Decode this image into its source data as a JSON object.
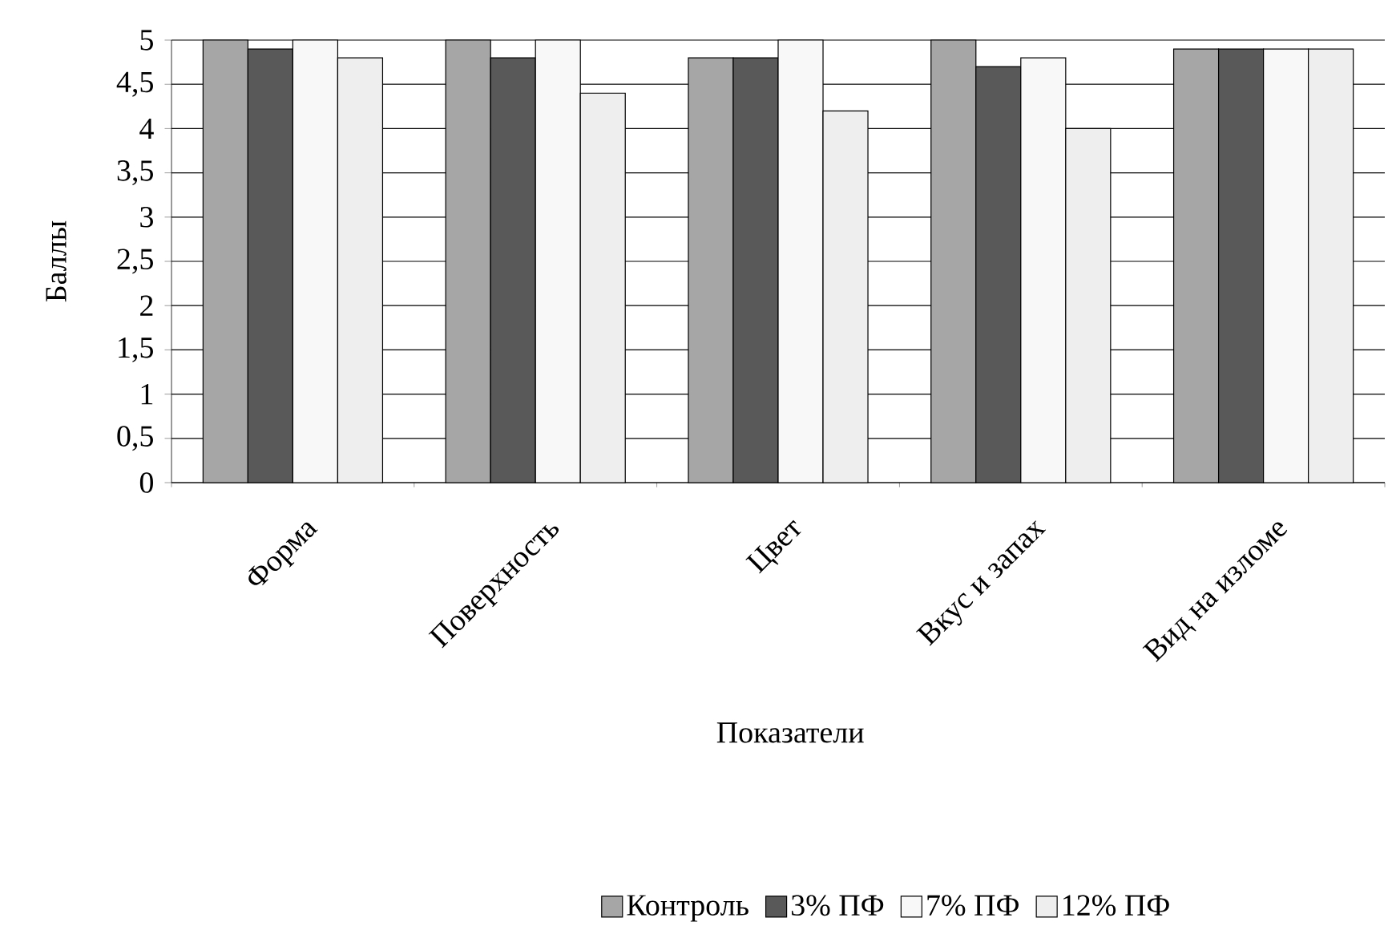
{
  "chart_data": {
    "type": "bar",
    "xlabel": "Показатели",
    "ylabel": "Баллы",
    "categories": [
      "Форма",
      "Поверхность",
      "Цвет",
      "Вкус и запах",
      "Вид на изломе"
    ],
    "series": [
      {
        "name": "Контроль",
        "color": "#a6a6a6",
        "values": [
          5,
          5,
          4.8,
          5,
          4.9
        ]
      },
      {
        "name": "3% ПФ",
        "color": "#595959",
        "values": [
          4.9,
          4.8,
          4.8,
          4.7,
          4.9
        ]
      },
      {
        "name": "7% ПФ",
        "color": "#f8f8f8",
        "values": [
          5,
          5,
          5,
          4.8,
          4.9
        ]
      },
      {
        "name": "12% ПФ",
        "color": "#eeeeee",
        "values": [
          4.8,
          4.4,
          4.2,
          4.0,
          4.9
        ]
      }
    ],
    "ylim": [
      0,
      5
    ],
    "yticks": [
      0,
      {
        "value": 0.5,
        "label": "0,5"
      },
      1,
      {
        "value": 1.5,
        "label": "1,5"
      },
      2,
      {
        "value": 2.5,
        "label": "2,5"
      },
      3,
      {
        "value": 3.5,
        "label": "3,5"
      },
      4,
      {
        "value": 4.5,
        "label": "4,5"
      },
      5
    ],
    "grid": "y",
    "legend": "bottom"
  }
}
